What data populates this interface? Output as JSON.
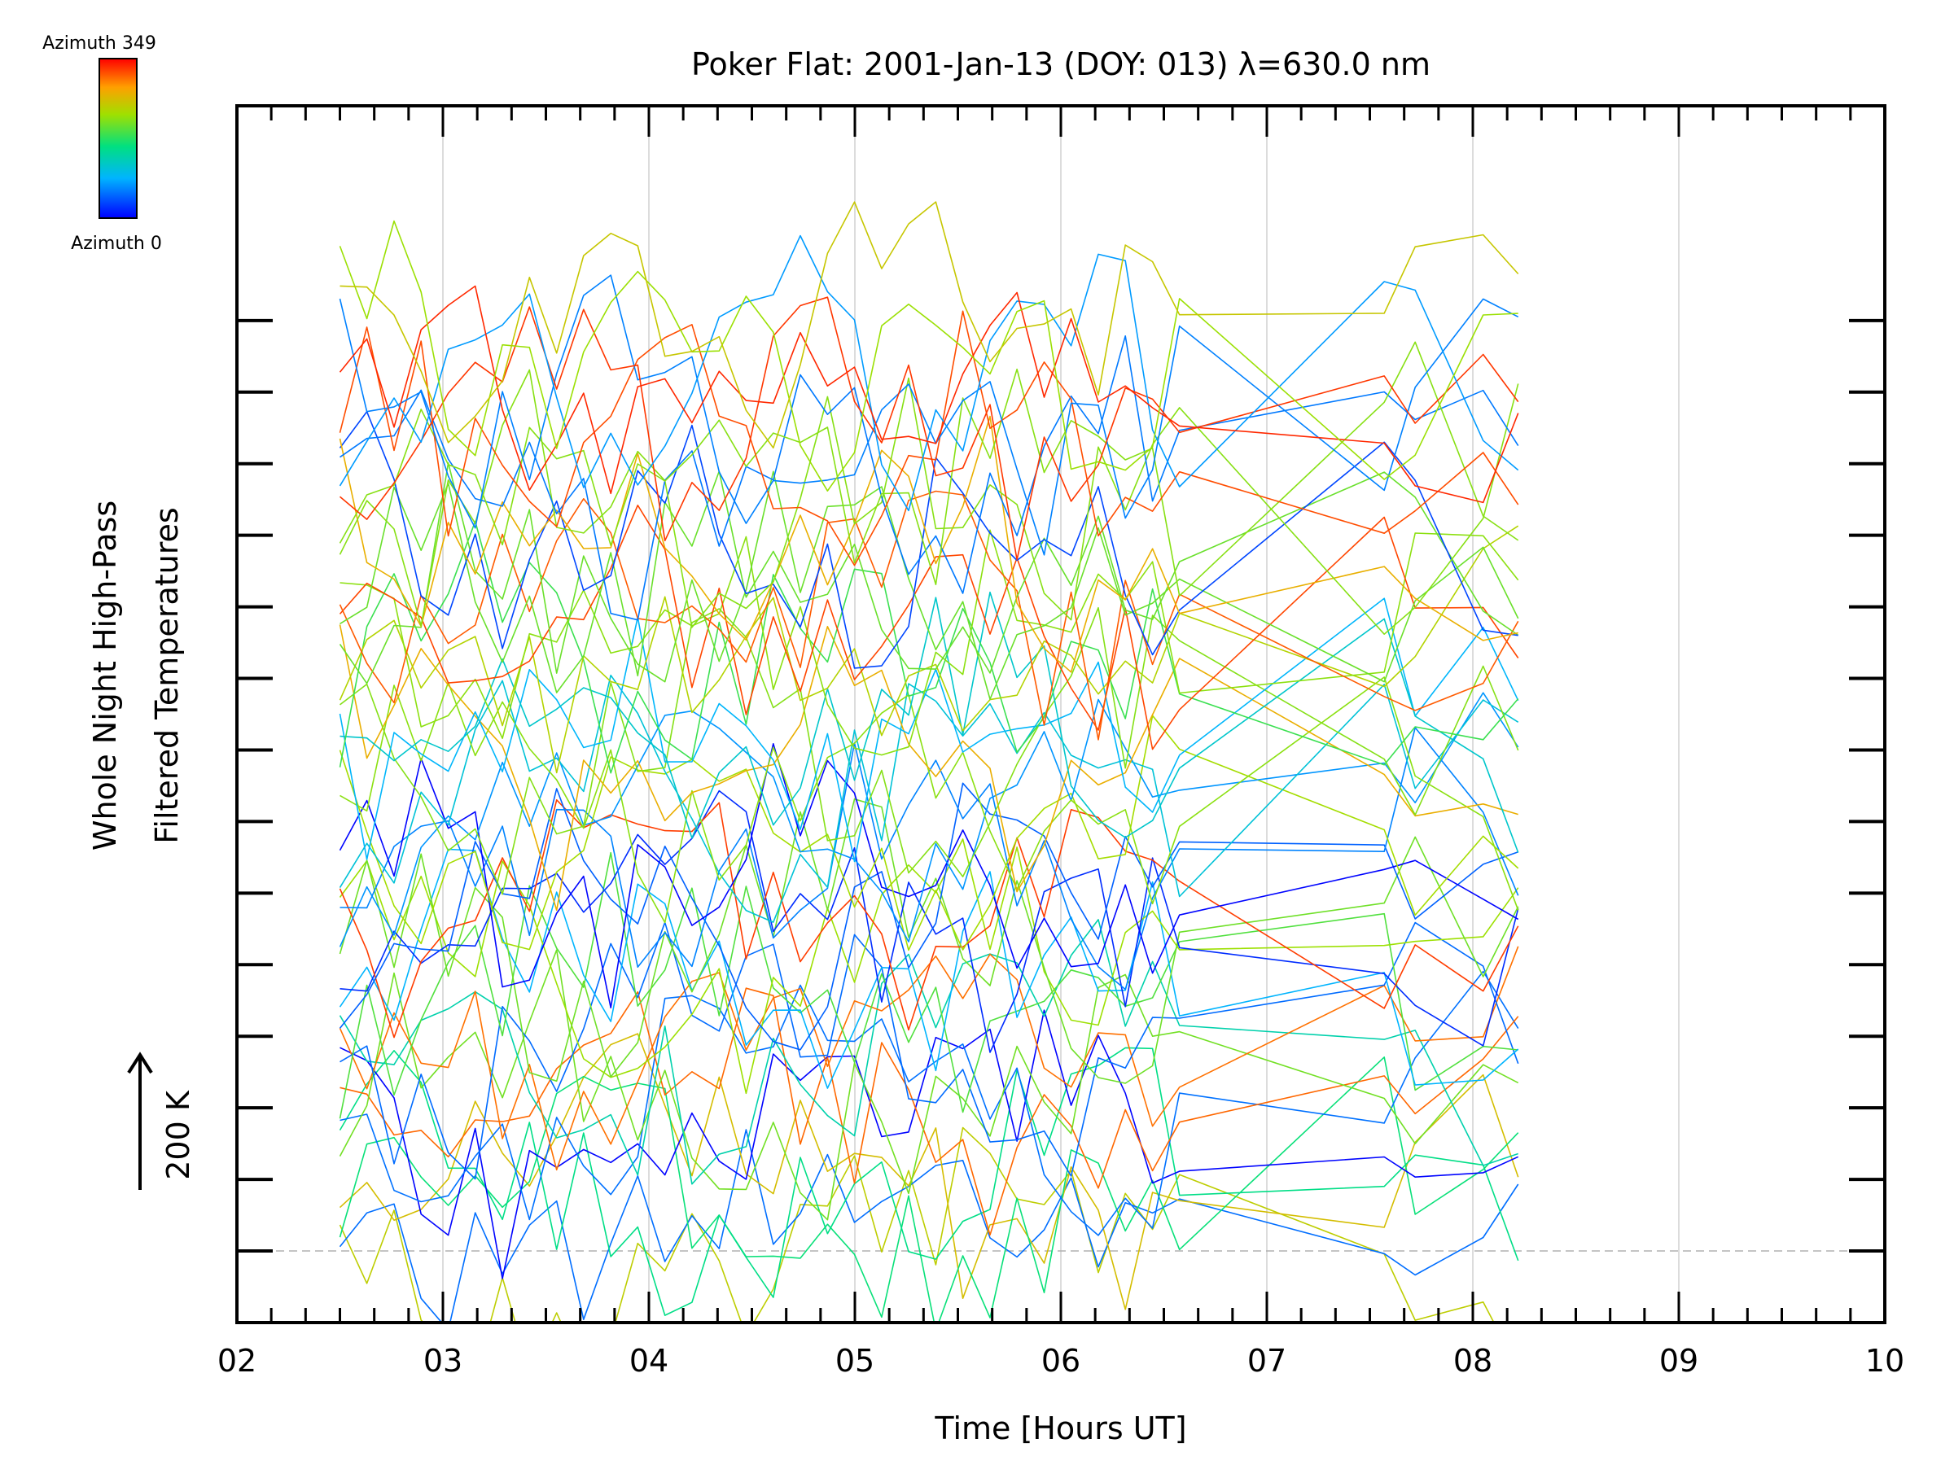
{
  "chart_data": {
    "type": "line",
    "title": "Poker Flat: 2001-Jan-13 (DOY: 013) λ=630.0 nm",
    "xlabel": "Time [Hours UT]",
    "ylabel_line1": "Whole Night High-Pass",
    "ylabel_line2": "Filtered Temperatures",
    "scale_label": "200 K",
    "scale_arrow": "↑",
    "colorbar": {
      "top_label": "Azimuth 349",
      "bottom_label": "Azimuth 0",
      "colormap": "rainbow (blue → cyan → green → yellow → red)"
    },
    "x_ticks": [
      "02",
      "03",
      "04",
      "05",
      "06",
      "07",
      "08",
      "09",
      "10"
    ],
    "xlim": [
      2,
      10
    ],
    "ylim": [
      0,
      17
    ],
    "grid": "vertical dotted lines at each hour",
    "reference_line": "dashed baseline at y = 1.0",
    "series_count": 48,
    "data_range_hours": [
      2.5,
      8.22
    ],
    "note": "Dense overlay of per-azimuth high-pass filtered temperature traces, stacked vertically; individual values not labeled."
  },
  "colors": {
    "axis": "#000000",
    "grid": "#d0d0d0",
    "reference": "#b0b0b0",
    "background": "#ffffff"
  }
}
